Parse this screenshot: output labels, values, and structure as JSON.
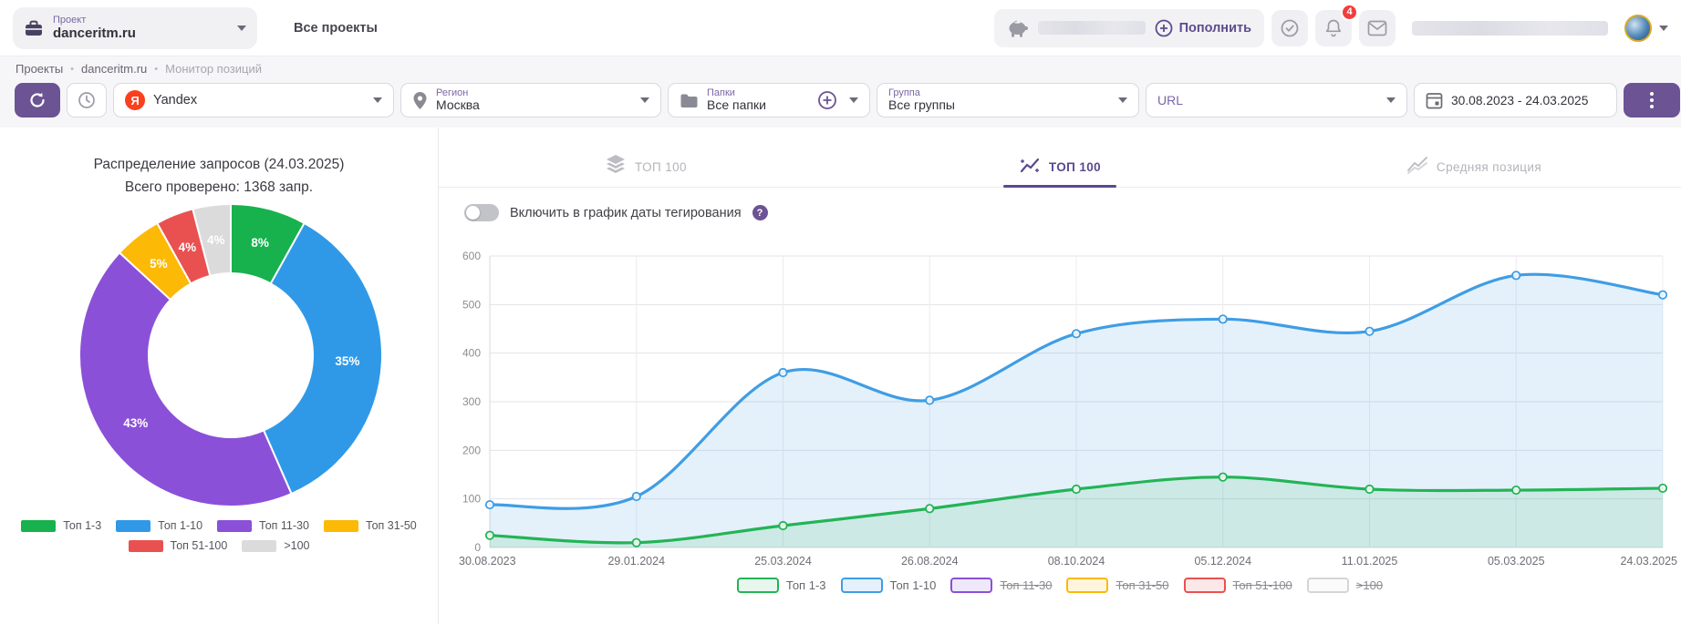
{
  "header": {
    "project_label": "Проект",
    "project_name": "danceritm.ru",
    "all_projects_label": "Все проекты",
    "topup_label": "Пополнить",
    "notifications_count": "4"
  },
  "breadcrumb": {
    "sep": "•",
    "items": [
      "Проекты",
      "danceritm.ru",
      "Монитор позиций"
    ]
  },
  "toolbar": {
    "search_engine_value": "Yandex",
    "region_label": "Регион",
    "region_value": "Москва",
    "folders_label": "Папки",
    "folders_value": "Все папки",
    "group_label": "Группа",
    "group_value": "Все группы",
    "url_label": "URL",
    "date_range": "30.08.2023 - 24.03.2025"
  },
  "tabs": [
    {
      "label": "ТОП 100",
      "active": false
    },
    {
      "label": "ТОП 100",
      "active": true
    },
    {
      "label": "Средняя позиция",
      "active": false
    }
  ],
  "chart_controls": {
    "tagging_toggle_label": "Включить в график даты тегирования",
    "help_glyph": "?"
  },
  "glyphs": {
    "yandex": "Я"
  },
  "colors": {
    "accent_purple": "#6b5394",
    "yandex_red": "#fc3f1d",
    "badge_red": "#f23d3d"
  },
  "chart_data": [
    {
      "type": "pie",
      "donut": true,
      "title": "Распределение запросов (24.03.2025)",
      "subtitle": "Всего проверено: 1368 запр.",
      "labels": [
        "Топ 1-3",
        "Топ 1-10",
        "Топ 11-30",
        "Топ 31-50",
        "Топ 51-100",
        ">100"
      ],
      "values": [
        8,
        35,
        43,
        5,
        4,
        4
      ],
      "unit": "%",
      "slice_labels": [
        "8%",
        "35%",
        "43%",
        "5%",
        "4%",
        "4%"
      ],
      "colors": [
        "#17b24e",
        "#2f99e8",
        "#8b50d8",
        "#fcb906",
        "#e95151",
        "#dbdbdb"
      ],
      "legend_rows": [
        [
          0,
          1,
          2,
          3
        ],
        [
          4,
          5
        ]
      ]
    },
    {
      "type": "line",
      "x": [
        "30.08.2023",
        "29.01.2024",
        "25.03.2024",
        "26.08.2024",
        "08.10.2024",
        "05.12.2024",
        "11.01.2025",
        "05.03.2025",
        "24.03.2025"
      ],
      "series": [
        {
          "name": "Топ 1-10",
          "color": "#3f9de4",
          "fill": "rgba(63,157,228,0.14)",
          "legend_fill": "#e4f1fc",
          "visible": true,
          "values": [
            88,
            105,
            360,
            303,
            440,
            470,
            445,
            560,
            520
          ]
        },
        {
          "name": "Топ 1-3",
          "color": "#23b455",
          "fill": "rgba(35,180,85,0.12)",
          "legend_fill": "#e7f7ee",
          "visible": true,
          "values": [
            25,
            10,
            45,
            80,
            120,
            145,
            120,
            118,
            122
          ]
        },
        {
          "name": "Топ 11-30",
          "color": "#8b50d8",
          "legend_fill": "#efe8fa",
          "visible": false
        },
        {
          "name": "Топ 31-50",
          "color": "#fcb906",
          "legend_fill": "#fef5dc",
          "visible": false
        },
        {
          "name": "Топ 51-100",
          "color": "#e95151",
          "legend_fill": "#fce8e8",
          "visible": false
        },
        {
          "name": ">100",
          "color": "#d5d5d8",
          "legend_fill": "#fbfbfc",
          "visible": false
        }
      ],
      "legend_order": [
        "Топ 1-3",
        "Топ 1-10",
        "Топ 11-30",
        "Топ 31-50",
        "Топ 51-100",
        ">100"
      ],
      "ylim": [
        0,
        600
      ],
      "ytick": 100,
      "grid": true,
      "legend_position": "bottom"
    }
  ]
}
